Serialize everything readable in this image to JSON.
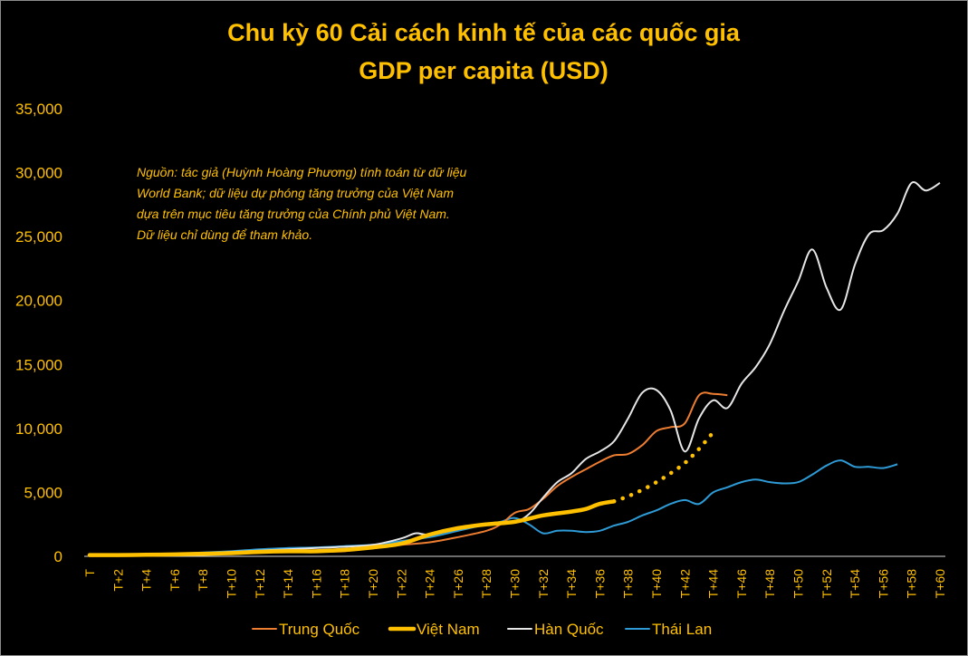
{
  "chart_data": {
    "type": "line",
    "title": [
      "Chu kỳ 60 Cải cách kinh tế của các quốc gia",
      "GDP per capita (USD)"
    ],
    "note": [
      "Nguồn: tác giả (Huỳnh Hoàng Phương) tính toán từ dữ liệu",
      "World Bank; dữ liệu dự phóng tăng trưởng của Việt Nam",
      "dựa trên mục tiêu tăng trưởng của Chính phủ Việt Nam.",
      "Dữ liệu chỉ dùng để tham khảo."
    ],
    "ylim": [
      0,
      35000
    ],
    "y_ticks": [
      0,
      5000,
      10000,
      15000,
      20000,
      25000,
      30000,
      35000
    ],
    "y_tick_labels": [
      "0",
      "5,000",
      "10,000",
      "15,000",
      "20,000",
      "25,000",
      "30,000",
      "35,000"
    ],
    "x_tick_labels": [
      "T",
      "T+2",
      "T+4",
      "T+6",
      "T+8",
      "T+10",
      "T+12",
      "T+14",
      "T+16",
      "T+18",
      "T+20",
      "T+22",
      "T+24",
      "T+26",
      "T+28",
      "T+30",
      "T+32",
      "T+34",
      "T+36",
      "T+38",
      "T+40",
      "T+42",
      "T+44",
      "T+46",
      "T+48",
      "T+50",
      "T+52",
      "T+54",
      "T+56",
      "T+58",
      "T+60"
    ],
    "grid": false,
    "legend_position": "bottom",
    "series": [
      {
        "name": "Trung Quốc",
        "color": "#ed7d31",
        "style": "solid",
        "x": [
          0,
          2,
          4,
          6,
          8,
          10,
          12,
          14,
          16,
          18,
          20,
          22,
          24,
          26,
          28,
          29,
          30,
          31,
          32,
          33,
          34,
          35,
          36,
          37,
          38,
          39,
          40,
          41,
          42,
          43,
          44,
          45
        ],
        "y": [
          150,
          160,
          180,
          200,
          250,
          300,
          320,
          330,
          350,
          400,
          700,
          900,
          1100,
          1500,
          2000,
          2500,
          3400,
          3700,
          4500,
          5500,
          6200,
          6800,
          7400,
          7900,
          8000,
          8700,
          9800,
          10100,
          10400,
          12600,
          12700,
          12600
        ]
      },
      {
        "name": "Việt Nam",
        "color": "#ffc000",
        "style": "solid-thick",
        "x": [
          0,
          2,
          4,
          6,
          8,
          10,
          12,
          14,
          16,
          18,
          20,
          22,
          24,
          26,
          28,
          30,
          32,
          34,
          35,
          36,
          37
        ],
        "y": [
          100,
          100,
          120,
          150,
          200,
          250,
          350,
          400,
          400,
          500,
          700,
          1000,
          1700,
          2200,
          2500,
          2700,
          3200,
          3500,
          3700,
          4100,
          4300
        ]
      },
      {
        "name": "Việt Nam (dự phóng)",
        "color": "#ffc000",
        "style": "dotted",
        "x": [
          37,
          38,
          39,
          40,
          41,
          42,
          43,
          44
        ],
        "y": [
          4300,
          4700,
          5200,
          5800,
          6500,
          7300,
          8400,
          9700
        ]
      },
      {
        "name": "Hàn Quốc",
        "color": "#e7e6e6",
        "style": "solid",
        "x": [
          0,
          2,
          4,
          6,
          8,
          10,
          12,
          14,
          16,
          18,
          20,
          22,
          23,
          24,
          26,
          28,
          30,
          31,
          32,
          33,
          34,
          35,
          36,
          37,
          38,
          39,
          40,
          41,
          42,
          43,
          44,
          45,
          46,
          47,
          48,
          49,
          50,
          51,
          52,
          53,
          54,
          55,
          56,
          57,
          58,
          59,
          60
        ],
        "y": [
          150,
          150,
          160,
          200,
          250,
          350,
          450,
          550,
          650,
          750,
          900,
          1400,
          1800,
          1700,
          2200,
          2500,
          2700,
          3300,
          4600,
          5800,
          6500,
          7600,
          8200,
          9000,
          10800,
          12800,
          13000,
          11400,
          8200,
          10800,
          12200,
          11600,
          13500,
          14800,
          16600,
          19200,
          21500,
          24000,
          21000,
          19300,
          22800,
          25200,
          25500,
          26800,
          29200,
          28600,
          29200
        ]
      },
      {
        "name": "Thái Lan",
        "color": "#2e9bd6",
        "style": "solid",
        "x": [
          0,
          2,
          4,
          6,
          8,
          10,
          12,
          14,
          16,
          18,
          20,
          22,
          24,
          26,
          28,
          29,
          30,
          31,
          32,
          33,
          34,
          35,
          36,
          37,
          38,
          39,
          40,
          41,
          42,
          43,
          44,
          45,
          46,
          47,
          48,
          49,
          50,
          51,
          52,
          53,
          54,
          55,
          56,
          57
        ],
        "y": [
          100,
          120,
          150,
          200,
          300,
          400,
          550,
          650,
          700,
          800,
          900,
          1200,
          1500,
          2000,
          2500,
          2700,
          3000,
          2500,
          1800,
          2000,
          2000,
          1900,
          2000,
          2400,
          2700,
          3200,
          3600,
          4100,
          4400,
          4100,
          5000,
          5400,
          5800,
          6000,
          5800,
          5700,
          5800,
          6400,
          7100,
          7500,
          7000,
          7000,
          6900,
          7200
        ]
      }
    ],
    "legend": [
      {
        "name": "Trung Quốc",
        "color": "#ed7d31"
      },
      {
        "name": "Việt Nam",
        "color": "#ffc000"
      },
      {
        "name": "Hàn Quốc",
        "color": "#e7e6e6"
      },
      {
        "name": "Thái Lan",
        "color": "#2e9bd6"
      }
    ]
  }
}
